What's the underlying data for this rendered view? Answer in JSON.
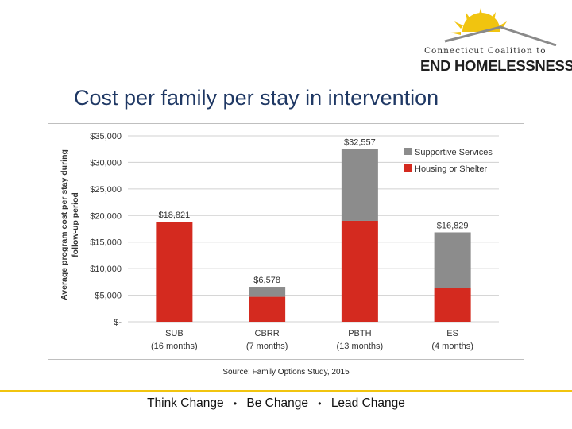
{
  "logo": {
    "line1": "Connecticut Coalition to",
    "line2": "END HOMELESSNESS"
  },
  "slide": {
    "title": "Cost per family per stay in intervention",
    "source": "Source: Family Options Study, 2015",
    "tagline": [
      "Think Change",
      "Be Change",
      "Lead Change"
    ],
    "separator": "•"
  },
  "colors": {
    "housing": "#d42a1f",
    "supportive": "#8c8c8c",
    "gold": "#f1c40f",
    "title": "#1f3864"
  },
  "chart_data": {
    "type": "bar",
    "stacked": true,
    "ylabel": "Average program cost per stay during follow-up period",
    "ylim": [
      0,
      35000
    ],
    "yticks": [
      0,
      5000,
      10000,
      15000,
      20000,
      25000,
      30000,
      35000
    ],
    "ytick_labels": [
      "$-",
      "$5,000",
      "$10,000",
      "$15,000",
      "$20,000",
      "$25,000",
      "$30,000",
      "$35,000"
    ],
    "categories": [
      "SUB",
      "CBRR",
      "PBTH",
      "ES"
    ],
    "category_sublabels": [
      "(16 months)",
      "(7 months)",
      "(13 months)",
      "(4 months)"
    ],
    "series": [
      {
        "name": "Housing or Shelter",
        "values": [
          18821,
          4700,
          19000,
          6400
        ]
      },
      {
        "name": "Supportive Services",
        "values": [
          0,
          1878,
          13557,
          10429
        ]
      }
    ],
    "totals": [
      18821,
      6578,
      32557,
      16829
    ],
    "total_labels": [
      "$18,821",
      "$6,578",
      "$32,557",
      "$16,829"
    ],
    "legend": [
      "Supportive Services",
      "Housing or Shelter"
    ],
    "legend_position": "top-right",
    "grid": true
  }
}
